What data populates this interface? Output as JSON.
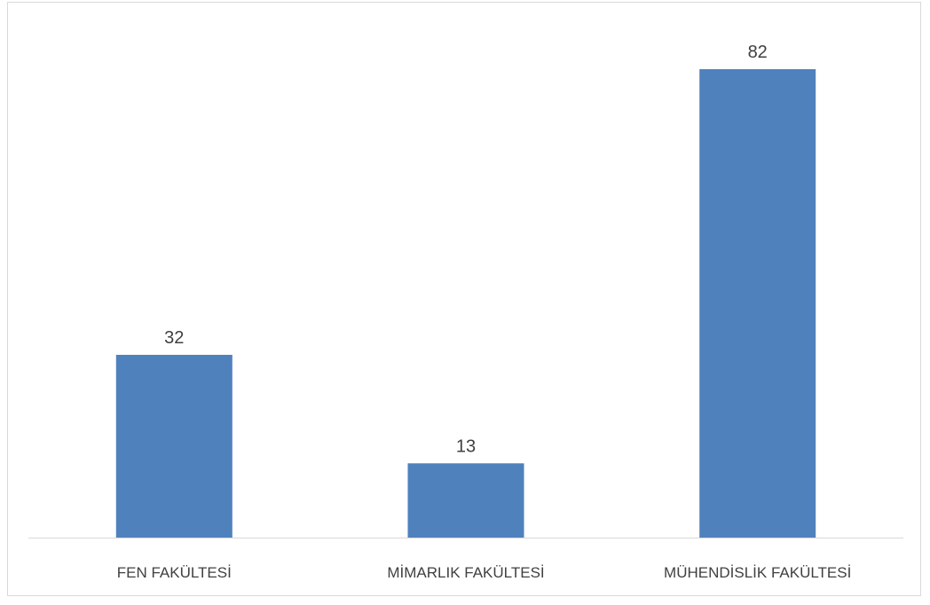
{
  "chart_data": {
    "type": "bar",
    "categories": [
      "FEN FAKÜLTESİ",
      "MİMARLIK FAKÜLTESİ",
      "MÜHENDİSLİK FAKÜLTESİ"
    ],
    "values": [
      32,
      13,
      82
    ],
    "title": "",
    "xlabel": "",
    "ylabel": "",
    "ylim": [
      0,
      90
    ],
    "grid": false,
    "legend": "none",
    "data_labels": true,
    "colors": {
      "bar": "#4f81bd",
      "axis": "#d9d9d9",
      "text": "#404040"
    }
  }
}
